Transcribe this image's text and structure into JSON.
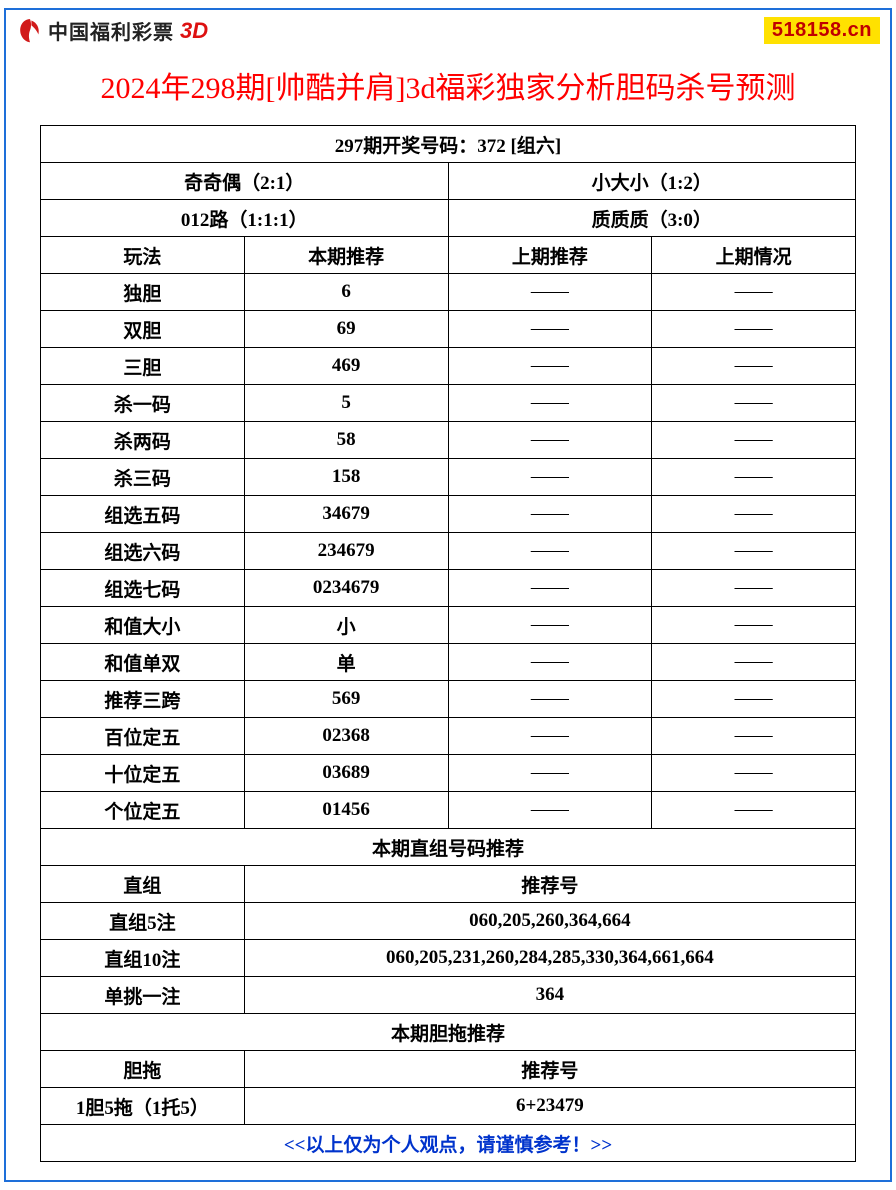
{
  "header": {
    "logo_text": "中国福利彩票",
    "logo_suffix": "3D",
    "site_badge": "518158.cn",
    "logo_color": "#d11a1a"
  },
  "title": "2024年298期[帅酷并肩]3d福彩独家分析胆码杀号预测",
  "colors": {
    "border": "#1e6fd9",
    "title": "#ff0000",
    "disclaimer": "#0033cc",
    "badge_bg": "#ffe100",
    "badge_text": "#c00000",
    "cell_border": "#000000"
  },
  "top": {
    "result_line": "297期开奖号码：372 [组六]",
    "pair_rows": [
      {
        "left": "奇奇偶（2:1）",
        "right": "小大小（1:2）"
      },
      {
        "left": "012路（1:1:1）",
        "right": "质质质（3:0）"
      }
    ]
  },
  "columns": [
    "玩法",
    "本期推荐",
    "上期推荐",
    "上期情况"
  ],
  "rows": [
    {
      "c0": "独胆",
      "c1": "6",
      "c2": "——",
      "c3": "——"
    },
    {
      "c0": "双胆",
      "c1": "69",
      "c2": "——",
      "c3": "——"
    },
    {
      "c0": "三胆",
      "c1": "469",
      "c2": "——",
      "c3": "——"
    },
    {
      "c0": "杀一码",
      "c1": "5",
      "c2": "——",
      "c3": "——"
    },
    {
      "c0": "杀两码",
      "c1": "58",
      "c2": "——",
      "c3": "——"
    },
    {
      "c0": "杀三码",
      "c1": "158",
      "c2": "——",
      "c3": "——"
    },
    {
      "c0": "组选五码",
      "c1": "34679",
      "c2": "——",
      "c3": "——"
    },
    {
      "c0": "组选六码",
      "c1": "234679",
      "c2": "——",
      "c3": "——"
    },
    {
      "c0": "组选七码",
      "c1": "0234679",
      "c2": "——",
      "c3": "——"
    },
    {
      "c0": "和值大小",
      "c1": "小",
      "c2": "——",
      "c3": "——"
    },
    {
      "c0": "和值单双",
      "c1": "单",
      "c2": "——",
      "c3": "——"
    },
    {
      "c0": "推荐三跨",
      "c1": "569",
      "c2": "——",
      "c3": "——"
    },
    {
      "c0": "百位定五",
      "c1": "02368",
      "c2": "——",
      "c3": "——"
    },
    {
      "c0": "十位定五",
      "c1": "03689",
      "c2": "——",
      "c3": "——"
    },
    {
      "c0": "个位定五",
      "c1": "01456",
      "c2": "——",
      "c3": "——"
    }
  ],
  "zhizu": {
    "section_title": "本期直组号码推荐",
    "header_left": "直组",
    "header_right": "推荐号",
    "rows": [
      {
        "label": "直组5注",
        "value": "060,205,260,364,664"
      },
      {
        "label": "直组10注",
        "value": "060,205,231,260,284,285,330,364,661,664"
      },
      {
        "label": "单挑一注",
        "value": "364"
      }
    ]
  },
  "dantuo": {
    "section_title": "本期胆拖推荐",
    "header_left": "胆拖",
    "header_right": "推荐号",
    "rows": [
      {
        "label": "1胆5拖（1托5）",
        "value": "6+23479"
      }
    ]
  },
  "disclaimer": "<<以上仅为个人观点，请谨慎参考！>>"
}
